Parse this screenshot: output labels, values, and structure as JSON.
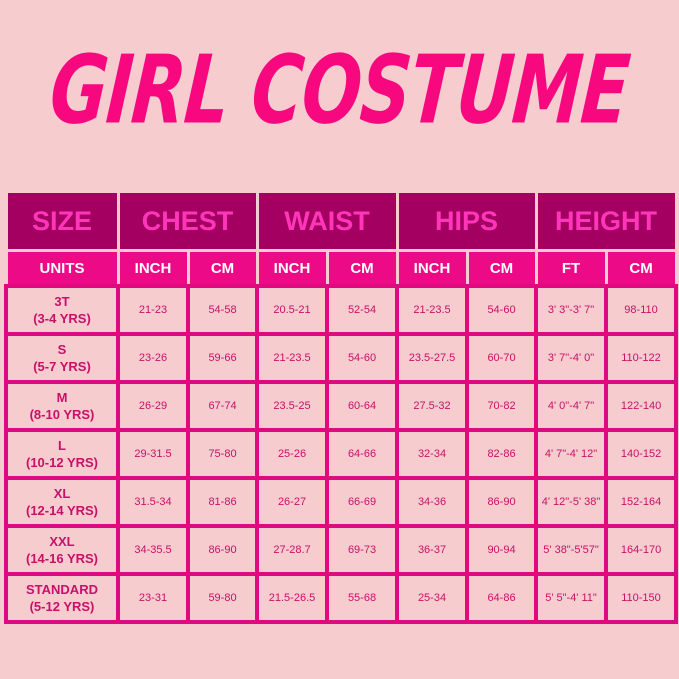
{
  "title": "GIRL COSTUME",
  "colors": {
    "background": "#f6ccce",
    "title": "#f7087f",
    "header_bg": "#a30062",
    "header_text": "#ff36b9",
    "units_bg": "#ec0a86",
    "cell_text": "#c8106a",
    "border": "#e1097f"
  },
  "headers": [
    "SIZE",
    "CHEST",
    "WAIST",
    "HIPS",
    "HEIGHT"
  ],
  "units": [
    "UNITS",
    "INCH",
    "CM",
    "INCH",
    "CM",
    "INCH",
    "CM",
    "FT",
    "CM"
  ],
  "rows": [
    {
      "size": "3T",
      "age": "(3-4 YRS)",
      "values": [
        "21-23",
        "54-58",
        "20.5-21",
        "52-54",
        "21-23.5",
        "54-60",
        "3' 3\"-3' 7\"",
        "98-110"
      ]
    },
    {
      "size": "S",
      "age": "(5-7 YRS)",
      "values": [
        "23-26",
        "59-66",
        "21-23.5",
        "54-60",
        "23.5-27.5",
        "60-70",
        "3' 7\"-4' 0\"",
        "110-122"
      ]
    },
    {
      "size": "M",
      "age": "(8-10 YRS)",
      "values": [
        "26-29",
        "67-74",
        "23.5-25",
        "60-64",
        "27.5-32",
        "70-82",
        "4' 0\"-4' 7\"",
        "122-140"
      ]
    },
    {
      "size": "L",
      "age": "(10-12 YRS)",
      "values": [
        "29-31.5",
        "75-80",
        "25-26",
        "64-66",
        "32-34",
        "82-86",
        "4' 7\"-4' 12\"",
        "140-152"
      ]
    },
    {
      "size": "XL",
      "age": "(12-14 YRS)",
      "values": [
        "31.5-34",
        "81-86",
        "26-27",
        "66-69",
        "34-36",
        "86-90",
        "4' 12\"-5' 38\"",
        "152-164"
      ]
    },
    {
      "size": "XXL",
      "age": "(14-16 YRS)",
      "values": [
        "34-35.5",
        "86-90",
        "27-28.7",
        "69-73",
        "36-37",
        "90-94",
        "5' 38\"-5'57\"",
        "164-170"
      ]
    },
    {
      "size": "STANDARD",
      "age": "(5-12 YRS)",
      "values": [
        "23-31",
        "59-80",
        "21.5-26.5",
        "55-68",
        "25-34",
        "64-86",
        "5' 5\"-4' 11\"",
        "110-150"
      ]
    }
  ]
}
